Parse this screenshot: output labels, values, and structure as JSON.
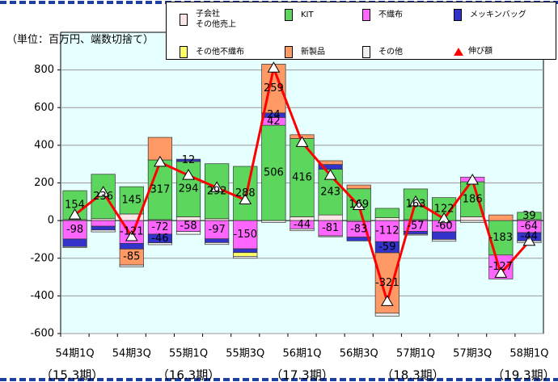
{
  "chart_data": {
    "type": "bar",
    "unit_label": "（単位：百万円、端数切捨て）",
    "categories": [
      "54期1Q",
      null,
      "54期3Q",
      null,
      "55期1Q",
      null,
      "55期3Q",
      null,
      "56期1Q",
      null,
      "56期3Q",
      null,
      "57期1Q",
      null,
      "57期3Q",
      null,
      "58期1Q"
    ],
    "period_labels": [
      "（15.3期）",
      "（16.3期）",
      "（17.3期）",
      "（18.3期）",
      "（19.3期）"
    ],
    "ylim": [
      -600,
      1000
    ],
    "yticks": [
      -600,
      -400,
      -200,
      0,
      200,
      400,
      600,
      800
    ],
    "grid": true,
    "series": [
      {
        "name": "子会社\nその他売上",
        "color": "#ffe6e6",
        "values": [
          5,
          10,
          35,
          5,
          20,
          10,
          0,
          0,
          20,
          30,
          -5,
          15,
          5,
          0,
          20,
          0,
          5
        ]
      },
      {
        "name": "KIT",
        "color": "#5cd65c",
        "values": [
          154,
          236,
          145,
          317,
          294,
          292,
          288,
          506,
          416,
          243,
          169,
          50,
          163,
          122,
          186,
          -183,
          39
        ],
        "value_labels": [
          "154",
          "236",
          "145",
          "317",
          "294",
          "292",
          "288",
          "506",
          "416",
          "243",
          "169",
          null,
          "163",
          "122",
          "186",
          "-183",
          "39"
        ]
      },
      {
        "name": "不織布",
        "color": "#ff66ff",
        "values": [
          -98,
          -30,
          -121,
          -72,
          -58,
          -97,
          -150,
          42,
          -44,
          -81,
          -83,
          -112,
          -57,
          -60,
          25,
          -127,
          -64
        ],
        "value_labels": [
          "-98",
          null,
          "-121",
          "-72",
          "-58",
          "-97",
          "-150",
          "42",
          "-44",
          "-81",
          "-83",
          "-112",
          "-57",
          "-60",
          null,
          "-127",
          "-64"
        ]
      },
      {
        "name": "メッキンバッグ",
        "color": "#3333cc",
        "values": [
          -40,
          -20,
          -30,
          -46,
          12,
          -20,
          -20,
          24,
          0,
          25,
          -20,
          -59,
          -15,
          -40,
          0,
          0,
          -44
        ],
        "value_labels": [
          null,
          null,
          null,
          "-46",
          "12",
          null,
          null,
          "24",
          null,
          null,
          null,
          "-59",
          null,
          null,
          null,
          null,
          "-44"
        ]
      },
      {
        "name": "その他不織布",
        "color": "#ffff66",
        "values": [
          0,
          0,
          0,
          0,
          0,
          0,
          -20,
          0,
          0,
          0,
          0,
          0,
          0,
          0,
          0,
          0,
          0
        ]
      },
      {
        "name": "新製品",
        "color": "#ff9966",
        "values": [
          0,
          0,
          -85,
          120,
          0,
          0,
          0,
          259,
          20,
          20,
          20,
          -321,
          0,
          0,
          0,
          30,
          0
        ],
        "value_labels": [
          null,
          null,
          "-85",
          null,
          null,
          null,
          null,
          "259",
          null,
          null,
          null,
          "-321",
          null,
          null,
          null,
          null,
          null
        ]
      },
      {
        "name": "その他",
        "color": "#f0f0f0",
        "values": [
          -5,
          -10,
          -10,
          -10,
          -15,
          -10,
          -10,
          -10,
          -10,
          -5,
          0,
          -15,
          -5,
          -10,
          -10,
          0,
          -10
        ]
      },
      {
        "name": "伸び額",
        "type": "line",
        "color": "#ff0000",
        "values": [
          30,
          150,
          -85,
          310,
          240,
          175,
          110,
          810,
          415,
          240,
          80,
          -430,
          100,
          10,
          215,
          -280,
          -110
        ]
      }
    ]
  }
}
